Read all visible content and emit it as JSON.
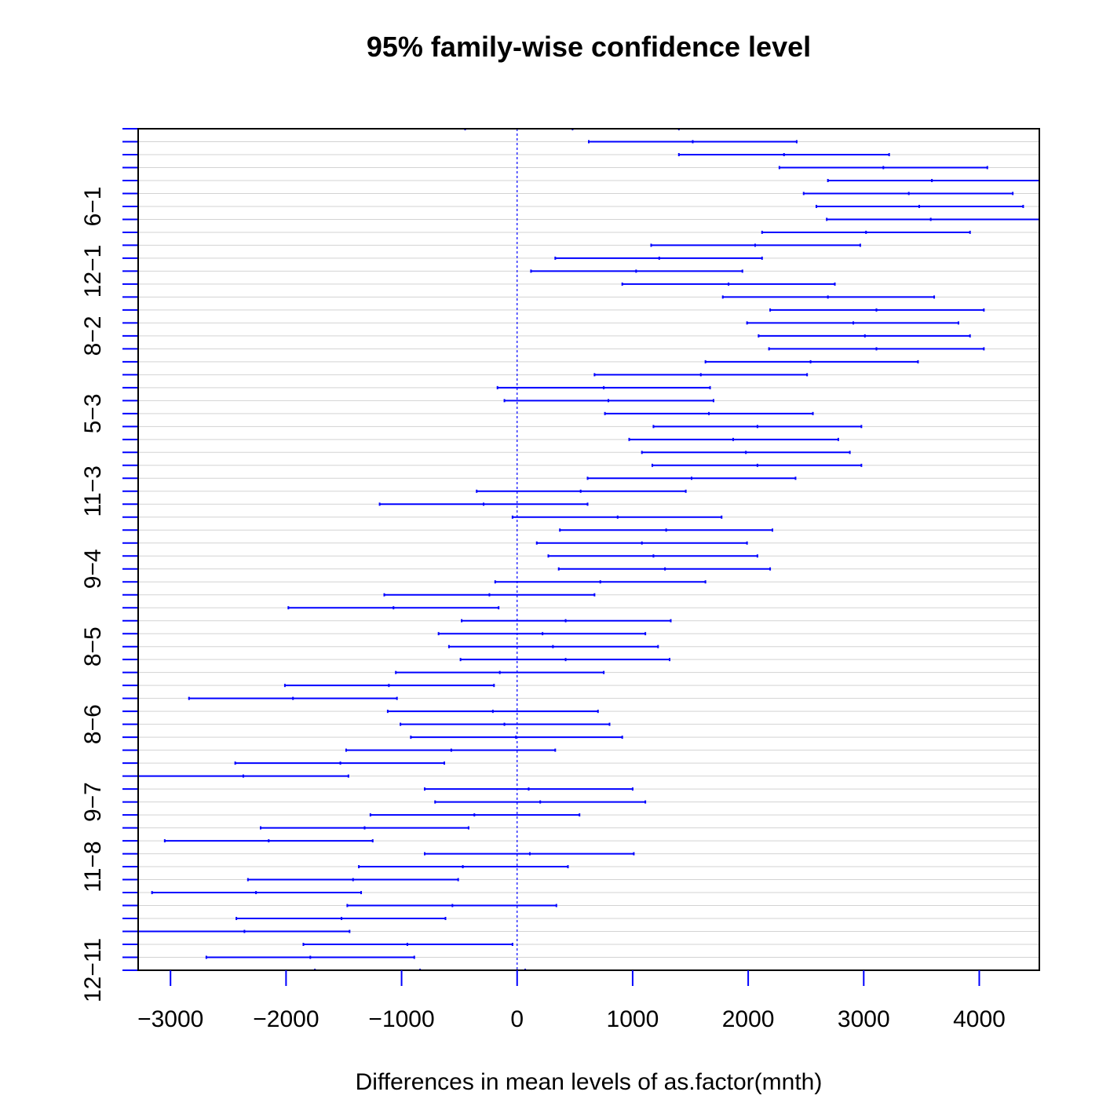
{
  "chart_data": {
    "type": "interval",
    "title": "95% family-wise confidence level",
    "xlabel": "Differences in mean levels of as.factor(mnth)",
    "ylabel": "",
    "xlim": [
      -3280,
      4520
    ],
    "x_ticks": [
      -3000,
      -2000,
      -1000,
      0,
      1000,
      2000,
      3000,
      4000
    ],
    "x_tick_labels": [
      "−3000",
      "−2000",
      "−1000",
      "0",
      "1000",
      "2000",
      "3000",
      "4000"
    ],
    "reference_line_x": 0,
    "grid": true,
    "y_tick_labels": [
      {
        "row": 6,
        "label": "6−1"
      },
      {
        "row": 11,
        "label": "12−1"
      },
      {
        "row": 16,
        "label": "8−2"
      },
      {
        "row": 22,
        "label": "5−3"
      },
      {
        "row": 28,
        "label": "11−3"
      },
      {
        "row": 34,
        "label": "9−4"
      },
      {
        "row": 40,
        "label": "8−5"
      },
      {
        "row": 46,
        "label": "8−6"
      },
      {
        "row": 52,
        "label": "9−7"
      },
      {
        "row": 57,
        "label": "11−8"
      },
      {
        "row": 65,
        "label": "12−11"
      }
    ],
    "comparisons": [
      {
        "lwr": -450,
        "diff": 480,
        "upr": 1400
      },
      {
        "lwr": 620,
        "diff": 1520,
        "upr": 2420
      },
      {
        "lwr": 1400,
        "diff": 2310,
        "upr": 3220
      },
      {
        "lwr": 2270,
        "diff": 3170,
        "upr": 4070
      },
      {
        "lwr": 2690,
        "diff": 3590,
        "upr": 4550
      },
      {
        "lwr": 2480,
        "diff": 3390,
        "upr": 4290
      },
      {
        "lwr": 2590,
        "diff": 3480,
        "upr": 4380
      },
      {
        "lwr": 2680,
        "diff": 3580,
        "upr": 4540
      },
      {
        "lwr": 2120,
        "diff": 3020,
        "upr": 3920
      },
      {
        "lwr": 1160,
        "diff": 2060,
        "upr": 2970
      },
      {
        "lwr": 330,
        "diff": 1230,
        "upr": 2120
      },
      {
        "lwr": 120,
        "diff": 1030,
        "upr": 1950
      },
      {
        "lwr": 910,
        "diff": 1830,
        "upr": 2750
      },
      {
        "lwr": 1780,
        "diff": 2690,
        "upr": 3610
      },
      {
        "lwr": 2190,
        "diff": 3110,
        "upr": 4040
      },
      {
        "lwr": 1990,
        "diff": 2910,
        "upr": 3820
      },
      {
        "lwr": 2090,
        "diff": 3010,
        "upr": 3920
      },
      {
        "lwr": 2180,
        "diff": 3110,
        "upr": 4040
      },
      {
        "lwr": 1630,
        "diff": 2540,
        "upr": 3470
      },
      {
        "lwr": 670,
        "diff": 1590,
        "upr": 2510
      },
      {
        "lwr": -170,
        "diff": 750,
        "upr": 1670
      },
      {
        "lwr": -110,
        "diff": 790,
        "upr": 1700
      },
      {
        "lwr": 760,
        "diff": 1660,
        "upr": 2560
      },
      {
        "lwr": 1180,
        "diff": 2080,
        "upr": 2980
      },
      {
        "lwr": 970,
        "diff": 1870,
        "upr": 2780
      },
      {
        "lwr": 1080,
        "diff": 1980,
        "upr": 2880
      },
      {
        "lwr": 1170,
        "diff": 2080,
        "upr": 2980
      },
      {
        "lwr": 610,
        "diff": 1510,
        "upr": 2410
      },
      {
        "lwr": -350,
        "diff": 550,
        "upr": 1460
      },
      {
        "lwr": -1190,
        "diff": -290,
        "upr": 610
      },
      {
        "lwr": -40,
        "diff": 870,
        "upr": 1770
      },
      {
        "lwr": 370,
        "diff": 1290,
        "upr": 2210
      },
      {
        "lwr": 170,
        "diff": 1080,
        "upr": 1990
      },
      {
        "lwr": 270,
        "diff": 1180,
        "upr": 2080
      },
      {
        "lwr": 360,
        "diff": 1280,
        "upr": 2190
      },
      {
        "lwr": -190,
        "diff": 720,
        "upr": 1630
      },
      {
        "lwr": -1150,
        "diff": -240,
        "upr": 670
      },
      {
        "lwr": -1980,
        "diff": -1070,
        "upr": -160
      },
      {
        "lwr": -480,
        "diff": 420,
        "upr": 1330
      },
      {
        "lwr": -680,
        "diff": 220,
        "upr": 1110
      },
      {
        "lwr": -590,
        "diff": 310,
        "upr": 1220
      },
      {
        "lwr": -490,
        "diff": 420,
        "upr": 1320
      },
      {
        "lwr": -1050,
        "diff": -150,
        "upr": 750
      },
      {
        "lwr": -2010,
        "diff": -1110,
        "upr": -200
      },
      {
        "lwr": -2840,
        "diff": -1940,
        "upr": -1040
      },
      {
        "lwr": -1120,
        "diff": -210,
        "upr": 700
      },
      {
        "lwr": -1010,
        "diff": -110,
        "upr": 800
      },
      {
        "lwr": -920,
        "diff": -10,
        "upr": 910
      },
      {
        "lwr": -1480,
        "diff": -570,
        "upr": 330
      },
      {
        "lwr": -2440,
        "diff": -1530,
        "upr": -630
      },
      {
        "lwr": -3300,
        "diff": -2370,
        "upr": -1460
      },
      {
        "lwr": -800,
        "diff": 100,
        "upr": 1000
      },
      {
        "lwr": -710,
        "diff": 200,
        "upr": 1110
      },
      {
        "lwr": -1270,
        "diff": -370,
        "upr": 540
      },
      {
        "lwr": -2220,
        "diff": -1320,
        "upr": -420
      },
      {
        "lwr": -3050,
        "diff": -2150,
        "upr": -1250
      },
      {
        "lwr": -800,
        "diff": 110,
        "upr": 1010
      },
      {
        "lwr": -1370,
        "diff": -470,
        "upr": 440
      },
      {
        "lwr": -2330,
        "diff": -1420,
        "upr": -510
      },
      {
        "lwr": -3160,
        "diff": -2260,
        "upr": -1350
      },
      {
        "lwr": -1470,
        "diff": -560,
        "upr": 340
      },
      {
        "lwr": -2430,
        "diff": -1520,
        "upr": -620
      },
      {
        "lwr": -3300,
        "diff": -2360,
        "upr": -1450
      },
      {
        "lwr": -1850,
        "diff": -950,
        "upr": -40
      },
      {
        "lwr": -2690,
        "diff": -1790,
        "upr": -890
      },
      {
        "lwr": -1750,
        "diff": -840,
        "upr": 70
      }
    ]
  }
}
